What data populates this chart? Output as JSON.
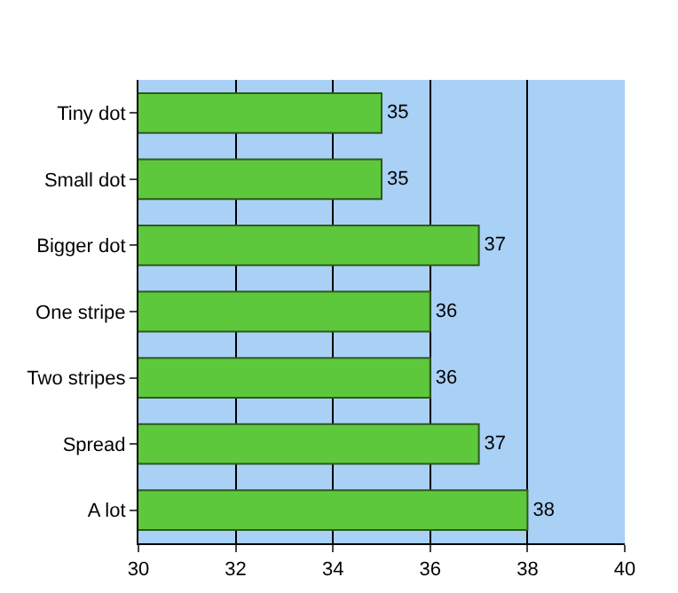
{
  "chart_data": {
    "type": "bar",
    "orientation": "horizontal",
    "categories": [
      "Tiny dot",
      "Small dot",
      "Bigger dot",
      "One stripe",
      "Two stripes",
      "Spread",
      "A lot"
    ],
    "values": [
      35,
      35,
      37,
      36,
      36,
      37,
      38
    ],
    "color": "#5ec83c",
    "xlim": [
      30,
      40
    ],
    "xticks": [
      30,
      32,
      34,
      36,
      38,
      40
    ],
    "grid": "x",
    "data_labels": true,
    "legend": false
  }
}
